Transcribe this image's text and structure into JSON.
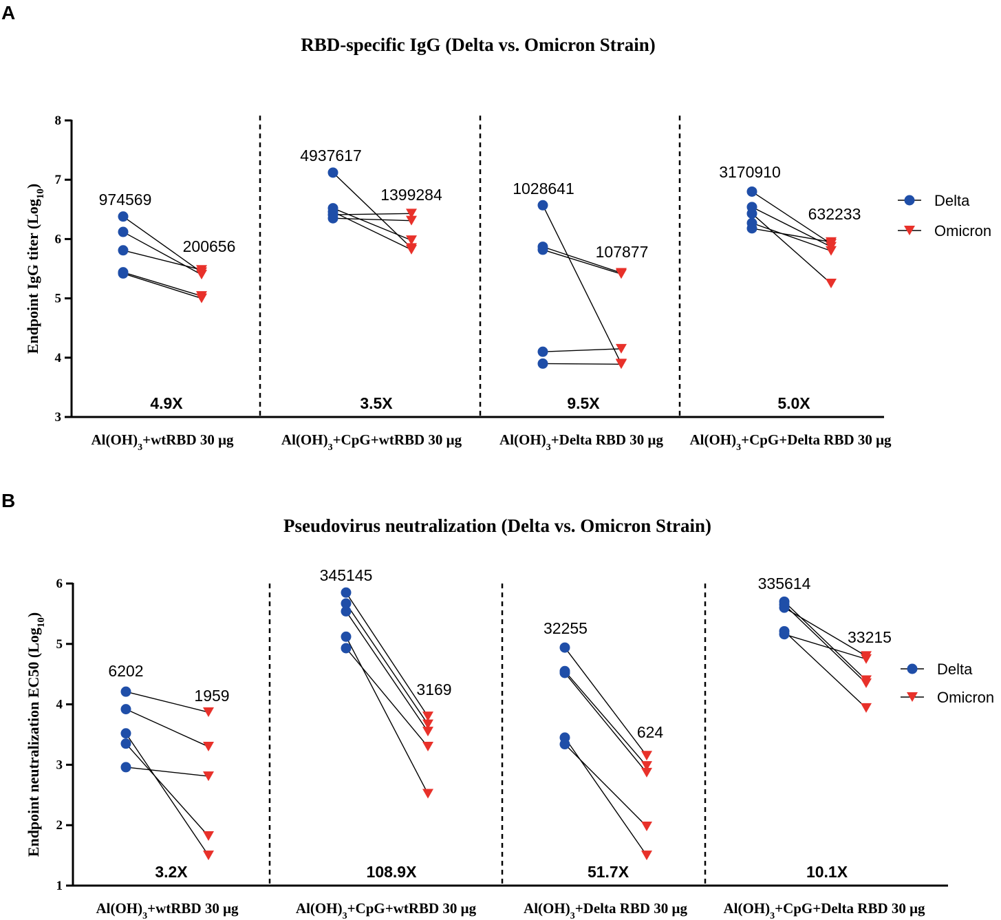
{
  "chart_data": [
    {
      "panel": "A",
      "type": "scatter",
      "title": "RBD-specific IgG (Delta vs. Omicron Strain)",
      "ylabel": "Endpoint IgG titer (Log10)",
      "ylabel_parts": {
        "main": "Endpoint IgG titer (Log",
        "sub": "10",
        "close": ")"
      },
      "ylim": [
        3,
        8
      ],
      "yticks": [
        "3",
        "4",
        "5",
        "6",
        "7",
        "8"
      ],
      "series_names": [
        "Delta",
        "Omicron"
      ],
      "groups": [
        {
          "label": "Al(OH)3+wtRBD 30 μg",
          "label_parts": {
            "pre": "Al(OH)",
            "sub": "3",
            "post": "+wtRBD 30 μg"
          },
          "delta": [
            6.38,
            6.12,
            5.81,
            5.44,
            5.42
          ],
          "omicron": [
            5.44,
            5.4,
            5.48,
            5.04,
            5.0
          ],
          "delta_gmt": "974569",
          "omicron_gmt": "200656",
          "fold": "4.9X"
        },
        {
          "label": "Al(OH)3+CpG+wtRBD 30 μg",
          "label_parts": {
            "pre": "Al(OH)",
            "sub": "3",
            "post": "+CpG+wtRBD 30 μg"
          },
          "delta": [
            7.12,
            6.52,
            6.46,
            6.41,
            6.35
          ],
          "omicron": [
            5.85,
            5.98,
            5.82,
            6.43,
            6.31
          ],
          "delta_gmt": "4937617",
          "omicron_gmt": "1399284",
          "fold": "3.5X"
        },
        {
          "label": "Al(OH)3+Delta RBD 30 μg",
          "label_parts": {
            "pre": "Al(OH)",
            "sub": "3",
            "post": "+Delta RBD 30 μg"
          },
          "delta": [
            6.57,
            5.87,
            5.82,
            4.1,
            3.9
          ],
          "omicron": [
            3.9,
            5.43,
            5.41,
            4.15,
            3.89
          ],
          "delta_gmt": "1028641",
          "omicron_gmt": "107877",
          "fold": "9.5X"
        },
        {
          "label": "Al(OH)3+CpG+Delta RBD 30 μg",
          "label_parts": {
            "pre": "Al(OH)",
            "sub": "3",
            "post": "+CpG+Delta RBD 30 μg"
          },
          "delta": [
            6.8,
            6.54,
            6.43,
            6.27,
            6.18
          ],
          "omicron": [
            5.92,
            5.87,
            5.25,
            5.8,
            5.95
          ],
          "delta_gmt": "3170910",
          "omicron_gmt": "632233",
          "fold": "5.0X"
        }
      ],
      "legend": {
        "delta": "Delta",
        "omicron": "Omicron",
        "position": "right"
      }
    },
    {
      "panel": "B",
      "type": "scatter",
      "title": "Pseudovirus neutralization (Delta vs. Omicron Strain)",
      "ylabel": "Endpoint neutralization EC50 (Log10)",
      "ylabel_parts": {
        "main": "Endpoint neutralization EC50 (Log",
        "sub": "10",
        "close": ")"
      },
      "ylim": [
        1,
        6
      ],
      "yticks": [
        "1",
        "2",
        "3",
        "4",
        "5",
        "6"
      ],
      "series_names": [
        "Delta",
        "Omicron"
      ],
      "groups": [
        {
          "label": "Al(OH)3+wtRBD 30 μg",
          "label_parts": {
            "pre": "Al(OH)",
            "sub": "3",
            "post": "+wtRBD 30 μg"
          },
          "delta": [
            4.21,
            3.92,
            3.52,
            3.35,
            2.96
          ],
          "omicron": [
            3.87,
            3.3,
            1.5,
            1.82,
            2.81
          ],
          "delta_gmt": "6202",
          "omicron_gmt": "1959",
          "fold": "3.2X"
        },
        {
          "label": "Al(OH)3+CpG+wtRBD 30 μg",
          "label_parts": {
            "pre": "Al(OH)",
            "sub": "3",
            "post": "+CpG+wtRBD 30 μg"
          },
          "delta": [
            5.85,
            5.67,
            5.54,
            5.12,
            4.93
          ],
          "omicron": [
            3.8,
            3.67,
            3.55,
            2.52,
            3.3
          ],
          "delta_gmt": "345145",
          "omicron_gmt": "3169",
          "fold": "108.9X"
        },
        {
          "label": "Al(OH)3+Delta RBD 30 μg",
          "label_parts": {
            "pre": "Al(OH)",
            "sub": "3",
            "post": "+Delta RBD 30 μg"
          },
          "delta": [
            4.94,
            4.55,
            4.52,
            3.45,
            3.34
          ],
          "omicron": [
            3.15,
            2.98,
            2.87,
            1.5,
            1.98
          ],
          "delta_gmt": "32255",
          "omicron_gmt": "624",
          "fold": "51.7X"
        },
        {
          "label": "Al(OH)3+CpG+Delta RBD 30 μg",
          "label_parts": {
            "pre": "Al(OH)",
            "sub": "3",
            "post": "+CpG+Delta RBD 30 μg"
          },
          "delta": [
            5.7,
            5.65,
            5.6,
            5.21,
            5.16
          ],
          "omicron": [
            4.4,
            4.35,
            4.8,
            3.94,
            4.75
          ],
          "delta_gmt": "335614",
          "omicron_gmt": "33215",
          "fold": "10.1X"
        }
      ],
      "legend": {
        "delta": "Delta",
        "omicron": "Omicron",
        "position": "right"
      }
    }
  ],
  "colors": {
    "delta": "#1f4ea8",
    "omicron": "#e8312a",
    "line": "#000000"
  }
}
